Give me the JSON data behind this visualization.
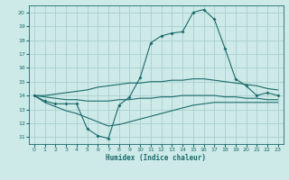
{
  "xlabel": "Humidex (Indice chaleur)",
  "xlim": [
    -0.5,
    23.5
  ],
  "ylim": [
    10.5,
    20.5
  ],
  "yticks": [
    11,
    12,
    13,
    14,
    15,
    16,
    17,
    18,
    19,
    20
  ],
  "xticks": [
    0,
    1,
    2,
    3,
    4,
    5,
    6,
    7,
    8,
    9,
    10,
    11,
    12,
    13,
    14,
    15,
    16,
    17,
    18,
    19,
    20,
    21,
    22,
    23
  ],
  "bg_color": "#cde9e8",
  "grid_color": "#a8cfce",
  "line_color": "#1a6b6b",
  "line1_y": [
    14.0,
    13.6,
    13.4,
    13.4,
    13.4,
    11.6,
    11.1,
    10.9,
    13.3,
    13.9,
    15.3,
    17.8,
    18.3,
    18.5,
    18.6,
    20.0,
    20.2,
    19.5,
    17.4,
    15.2,
    14.7,
    14.0,
    14.2,
    14.0
  ],
  "line2_y": [
    14.0,
    14.0,
    14.1,
    14.2,
    14.3,
    14.4,
    14.6,
    14.7,
    14.8,
    14.9,
    14.9,
    15.0,
    15.0,
    15.1,
    15.1,
    15.2,
    15.2,
    15.1,
    15.0,
    14.9,
    14.8,
    14.7,
    14.5,
    14.4
  ],
  "line3_y": [
    14.0,
    13.9,
    13.8,
    13.7,
    13.7,
    13.6,
    13.6,
    13.6,
    13.7,
    13.7,
    13.8,
    13.8,
    13.9,
    13.9,
    14.0,
    14.0,
    14.0,
    14.0,
    13.9,
    13.9,
    13.8,
    13.8,
    13.7,
    13.7
  ],
  "line4_y": [
    14.0,
    13.5,
    13.2,
    12.9,
    12.7,
    12.4,
    12.1,
    11.8,
    11.9,
    12.1,
    12.3,
    12.5,
    12.7,
    12.9,
    13.1,
    13.3,
    13.4,
    13.5,
    13.5,
    13.5,
    13.5,
    13.5,
    13.5,
    13.5
  ]
}
